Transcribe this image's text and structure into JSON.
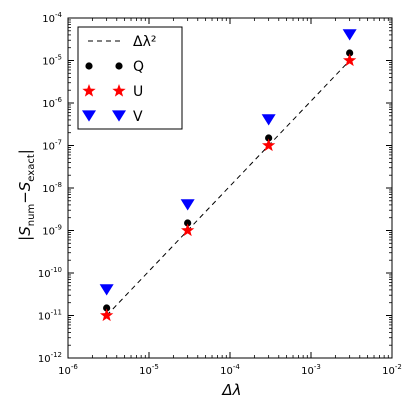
{
  "chart_data": {
    "type": "scatter",
    "x_scale": "log",
    "y_scale": "log",
    "xlim": [
      1e-06,
      0.01
    ],
    "ylim": [
      1e-12,
      0.0001
    ],
    "grid": false,
    "xlabel": "Δλ",
    "ylabel": "|S_num − S_exact|",
    "x_ticks": [
      {
        "value": 1e-06,
        "base": "10",
        "exp": "-6"
      },
      {
        "value": 1e-05,
        "base": "10",
        "exp": "-5"
      },
      {
        "value": 0.0001,
        "base": "10",
        "exp": "-4"
      },
      {
        "value": 0.001,
        "base": "10",
        "exp": "-3"
      },
      {
        "value": 0.01,
        "base": "10",
        "exp": "-2"
      }
    ],
    "y_ticks": [
      {
        "value": 1e-12,
        "base": "10",
        "exp": "-12"
      },
      {
        "value": 1e-11,
        "base": "10",
        "exp": "-11"
      },
      {
        "value": 1e-10,
        "base": "10",
        "exp": "-10"
      },
      {
        "value": 1e-09,
        "base": "10",
        "exp": "-9"
      },
      {
        "value": 1e-08,
        "base": "10",
        "exp": "-8"
      },
      {
        "value": 1e-07,
        "base": "10",
        "exp": "-7"
      },
      {
        "value": 1e-06,
        "base": "10",
        "exp": "-6"
      },
      {
        "value": 1e-05,
        "base": "10",
        "exp": "-5"
      },
      {
        "value": 0.0001,
        "base": "10",
        "exp": "-4"
      }
    ],
    "legend_position": "top-left",
    "series": [
      {
        "name": "Δλ²",
        "kind": "line",
        "style": "dashed",
        "color": "#000000",
        "x": [
          3e-06,
          0.003
        ],
        "y": [
          1e-11,
          1e-05
        ]
      },
      {
        "name": "Q",
        "kind": "scatter",
        "marker": "circle",
        "color": "#000000",
        "x": [
          3e-06,
          3e-05,
          0.0003,
          0.003
        ],
        "y": [
          1.5e-11,
          1.5e-09,
          1.5e-07,
          1.5e-05
        ]
      },
      {
        "name": "U",
        "kind": "scatter",
        "marker": "star",
        "color": "#ff0000",
        "x": [
          3e-06,
          3e-05,
          0.0003,
          0.003
        ],
        "y": [
          1e-11,
          1e-09,
          1e-07,
          1e-05
        ]
      },
      {
        "name": "V",
        "kind": "scatter",
        "marker": "triangle-down",
        "color": "#0000ff",
        "x": [
          3e-06,
          3e-05,
          0.0003,
          0.003
        ],
        "y": [
          4e-11,
          4e-09,
          4e-07,
          4e-05
        ]
      }
    ]
  }
}
